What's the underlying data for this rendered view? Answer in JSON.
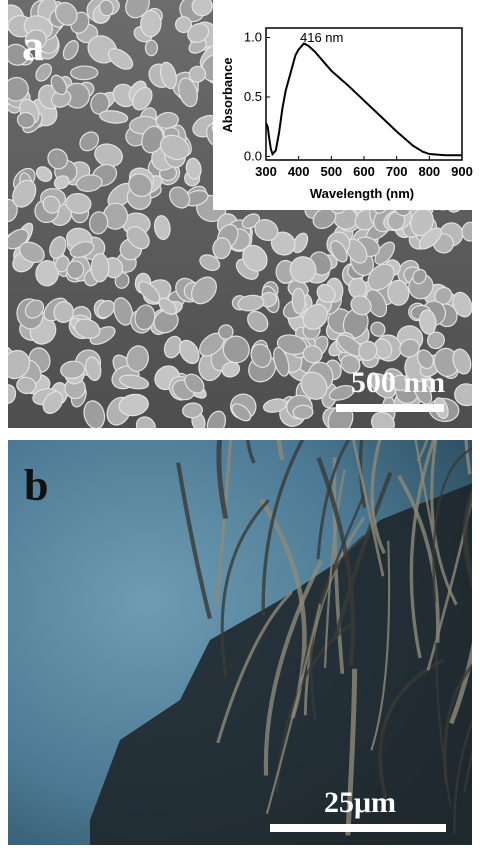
{
  "panels": [
    {
      "label": "a",
      "scale_bar": "500 nm"
    },
    {
      "label": "b",
      "scale_bar": "25μm"
    }
  ],
  "chart_data": {
    "type": "line",
    "x_label": "Wavelength (nm)",
    "y_label": "Absorbance",
    "annotation": "416 nm",
    "x": [
      300,
      305,
      310,
      315,
      320,
      330,
      340,
      350,
      360,
      370,
      380,
      390,
      400,
      416,
      430,
      450,
      475,
      500,
      550,
      600,
      650,
      700,
      750,
      780,
      800,
      850,
      900
    ],
    "series": [
      {
        "color": "#000000",
        "values": [
          0.28,
          0.25,
          0.15,
          0.06,
          0.02,
          0.05,
          0.2,
          0.4,
          0.55,
          0.65,
          0.75,
          0.85,
          0.9,
          0.95,
          0.93,
          0.88,
          0.8,
          0.72,
          0.6,
          0.47,
          0.34,
          0.21,
          0.09,
          0.04,
          0.02,
          0.01,
          0.01
        ]
      }
    ],
    "xlim": [
      300,
      900
    ],
    "ylim": [
      -0.03,
      1.08
    ],
    "xticks": [
      300,
      400,
      500,
      600,
      700,
      800,
      900
    ],
    "yticks": [
      {
        "value": 0,
        "label": "0.0"
      },
      {
        "value": 0.5,
        "label": "0.5"
      },
      {
        "value": 1,
        "label": "1.0"
      }
    ]
  }
}
